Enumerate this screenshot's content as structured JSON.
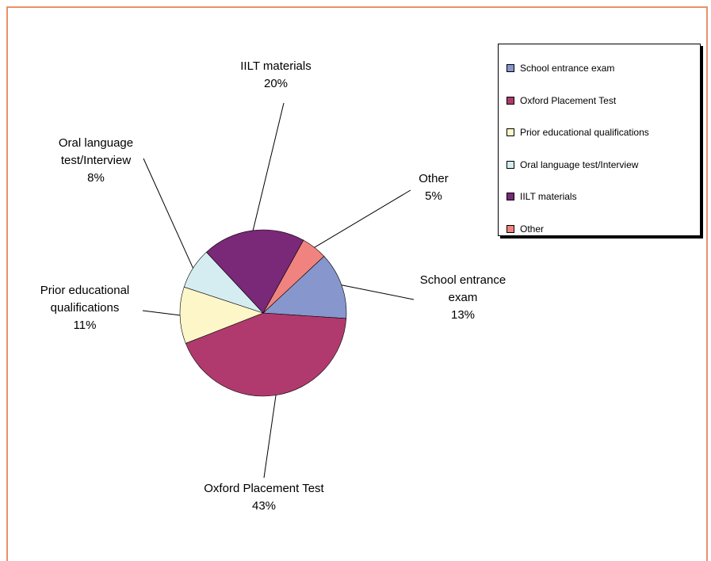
{
  "chart_data": {
    "type": "pie",
    "categories": [
      "School entrance exam",
      "Oxford Placement Test",
      "Prior educational qualifications",
      "Oral language test/Interview",
      "IILT materials",
      "Other"
    ],
    "values": [
      13,
      43,
      11,
      8,
      20,
      5
    ],
    "value_labels": [
      "13%",
      "43%",
      "11%",
      "8%",
      "20%",
      "5%"
    ],
    "colors": [
      "#8796cc",
      "#b03a6e",
      "#fdf6c8",
      "#d5edf0",
      "#7a2878",
      "#f0837f"
    ],
    "legend": "top-right"
  }
}
